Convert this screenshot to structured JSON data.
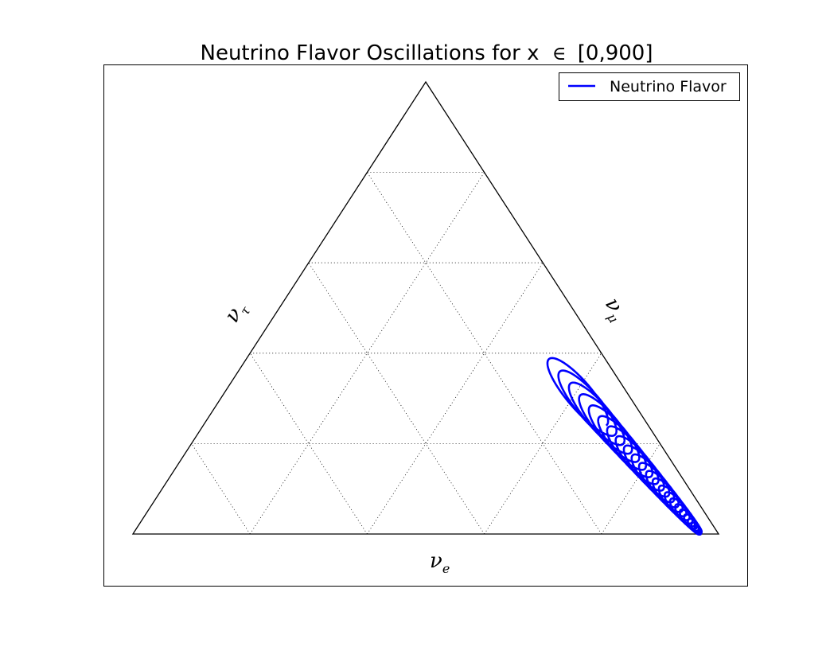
{
  "chart_data": {
    "type": "ternary-line",
    "title": "Neutrino Flavor Oscillations for x",
    "title_symbol": "∈",
    "title_range": "[0,900]",
    "axes": {
      "bottom": {
        "symbol": "ν",
        "subscript": "e"
      },
      "right": {
        "symbol": "ν",
        "subscript": "μ"
      },
      "left": {
        "symbol": "ν",
        "subscript": "τ"
      }
    },
    "x_range": [
      0,
      900
    ],
    "grid": true,
    "grid_divisions": 5,
    "legend": {
      "position": "top-right"
    },
    "series": [
      {
        "name": "Neutrino Flavor",
        "color": "#0000ff",
        "envelope_start": {
          "nu_e": 0.03,
          "nu_mu": 0.97,
          "nu_tau": 0.0
        },
        "envelope_end": {
          "nu_e": 0.1,
          "nu_mu": 0.5,
          "nu_tau": 0.4
        },
        "loops": 22,
        "loop_span": [
          0.03,
          0.4
        ],
        "loop_width": [
          0.012,
          0.055
        ]
      }
    ]
  }
}
